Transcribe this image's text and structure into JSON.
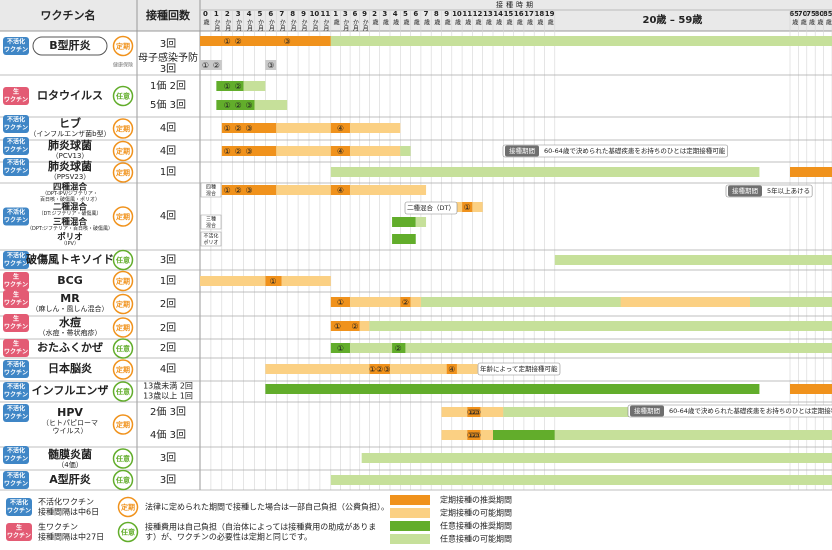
{
  "header": {
    "name": "ワクチン名",
    "doses": "接種回数",
    "period": "接種時期"
  },
  "columns": [
    [
      "0",
      "歳"
    ],
    [
      "1",
      "か月"
    ],
    [
      "2",
      "か月"
    ],
    [
      "3",
      "か月"
    ],
    [
      "4",
      "か月"
    ],
    [
      "5",
      "か月"
    ],
    [
      "6",
      "か月"
    ],
    [
      "7",
      "か月"
    ],
    [
      "8",
      "か月"
    ],
    [
      "9",
      "か月"
    ],
    [
      "10",
      "か月"
    ],
    [
      "11",
      "か月"
    ],
    [
      "1",
      "歳"
    ],
    [
      "3",
      "か月"
    ],
    [
      "6",
      "か月"
    ],
    [
      "9",
      "か月"
    ],
    [
      "2",
      "歳"
    ],
    [
      "3",
      "歳"
    ],
    [
      "4",
      "歳"
    ],
    [
      "5",
      "歳"
    ],
    [
      "6",
      "歳"
    ],
    [
      "7",
      "歳"
    ],
    [
      "8",
      "歳"
    ],
    [
      "9",
      "歳"
    ],
    [
      "10",
      "歳"
    ],
    [
      "11",
      "歳"
    ],
    [
      "12",
      "歳"
    ],
    [
      "13",
      "歳"
    ],
    [
      "14",
      "歳"
    ],
    [
      "15",
      "歳"
    ],
    [
      "16",
      "歳"
    ],
    [
      "17",
      "歳"
    ],
    [
      "18",
      "歳"
    ],
    [
      "19",
      "歳"
    ],
    [
      "20歳 – 59歳"
    ],
    [
      "65",
      "歳"
    ],
    [
      "70",
      "歳"
    ],
    [
      "75",
      "歳"
    ],
    [
      "80",
      "歳"
    ],
    [
      "85",
      "歳"
    ]
  ],
  "rows": [
    {
      "badge": [
        "不活化",
        "ワクチン"
      ],
      "category": "定期",
      "name": "B型肝炎",
      "sub": [],
      "sub_badge": "健康保険",
      "doses": [
        "3回",
        "母子感染予防",
        "3回"
      ],
      "marks": [
        "①",
        "②",
        "③",
        "①",
        "②",
        "③"
      ]
    },
    {
      "badge": [
        "生",
        "ワクチン"
      ],
      "category": "任意",
      "name": "ロタウイルス",
      "sub": [],
      "doses": [
        "1価 2回",
        "5価 3回"
      ],
      "marks": [
        "①",
        "②",
        "①",
        "②",
        "③"
      ]
    },
    {
      "badge": [
        "不活化",
        "ワクチン"
      ],
      "category": "定期",
      "name": "ヒブ",
      "sub": [
        "（インフルエンザ菌b型）"
      ],
      "doses": [
        "4回"
      ],
      "marks": [
        "①",
        "②",
        "③",
        "④"
      ]
    },
    {
      "badge": [
        "不活化",
        "ワクチン"
      ],
      "category": "定期",
      "name": "肺炎球菌",
      "sub": [
        "（PCV13）"
      ],
      "doses": [
        "4回"
      ],
      "marks": [
        "①",
        "②",
        "③",
        "④"
      ]
    },
    {
      "badge": [
        "不活化",
        "ワクチン"
      ],
      "category": "定期",
      "name": "肺炎球菌",
      "sub": [
        "（PPSV23）"
      ],
      "doses": [
        "1回"
      ],
      "marks": []
    },
    {
      "badge": [
        "不活化",
        "ワクチン"
      ],
      "category": "定期",
      "parts": [
        {
          "name": "四種混合",
          "sub": [
            "（DPT-IPV/ジフテリア・",
            "百日咳・破傷風・ポリオ）"
          ]
        },
        {
          "name": "二種混合",
          "sub": [
            "（DT:ジフテリア・破傷風）"
          ]
        },
        {
          "name": "三種混合",
          "sub": [
            "（DPT:ジフテリア・百日咳・破傷風）"
          ]
        },
        {
          "name": "ポリオ",
          "sub": [
            "（IPV）"
          ]
        }
      ],
      "doses": [
        "4回"
      ],
      "marks": [
        "①",
        "②",
        "③",
        "④",
        "①"
      ]
    },
    {
      "badge": [
        "不活化",
        "ワクチン"
      ],
      "category": "任意",
      "name": "破傷風トキソイド",
      "sub": [],
      "doses": [
        "3回"
      ],
      "marks": []
    },
    {
      "badge": [
        "生",
        "ワクチン"
      ],
      "category": "定期",
      "name": "BCG",
      "sub": [],
      "doses": [
        "1回"
      ],
      "marks": [
        "①"
      ]
    },
    {
      "badge": [
        "生",
        "ワクチン"
      ],
      "category": "定期",
      "name": "MR",
      "sub": [
        "（麻しん・風しん混合）"
      ],
      "doses": [
        "2回"
      ],
      "marks": [
        "①",
        "②"
      ]
    },
    {
      "badge": [
        "生",
        "ワクチン"
      ],
      "category": "定期",
      "name": "水痘",
      "sub": [
        "（水痘・帯状疱疹）"
      ],
      "doses": [
        "2回"
      ],
      "marks": [
        "①",
        "②"
      ]
    },
    {
      "badge": [
        "生",
        "ワクチン"
      ],
      "category": "任意",
      "name": "おたふくかぜ",
      "sub": [],
      "doses": [
        "2回"
      ],
      "marks": [
        "①",
        "②"
      ]
    },
    {
      "badge": [
        "不活化",
        "ワクチン"
      ],
      "category": "定期",
      "name": "日本脳炎",
      "sub": [],
      "doses": [
        "4回"
      ],
      "marks": [
        "①",
        "②",
        "③",
        "④"
      ]
    },
    {
      "badge": [
        "不活化",
        "ワクチン"
      ],
      "category": "任意",
      "name": "インフルエンザ",
      "sub": [],
      "doses": [
        "13歳未満 2回",
        "13歳以上 1回"
      ],
      "marks": []
    },
    {
      "badge": [
        "不活化",
        "ワクチン"
      ],
      "category": "定期",
      "name": "HPV",
      "sub": [
        "（ヒトパピローマ",
        "ウイルス）"
      ],
      "doses": [
        "2価 3回",
        "4価 3回"
      ],
      "marks": [
        "①",
        "②",
        "③",
        "①",
        "②",
        "③"
      ]
    },
    {
      "badge": [
        "不活化",
        "ワクチン"
      ],
      "category": "任意",
      "name": "髄膜炎菌",
      "sub": [
        "（4価）"
      ],
      "doses": [
        "3回"
      ],
      "marks": []
    },
    {
      "badge": [
        "不活化",
        "ワクチン"
      ],
      "category": "任意",
      "name": "A型肝炎",
      "sub": [],
      "doses": [
        "3回"
      ],
      "marks": []
    }
  ],
  "notes": [
    {
      "tag": "接種期間",
      "text": "60-64歳で決められた基礎疾患をお持ちのひとは定期接種可能"
    },
    {
      "tag": "接種期間",
      "text": "5年以上あける"
    },
    {
      "text": "二種混合（DT）"
    },
    {
      "text": "年齢によって定期接種可能"
    },
    {
      "tag": "接種期間",
      "text": "60-64歳で決められた基礎疾患をお持ちのひとは定期接種可能"
    }
  ],
  "grid_labels": [
    [
      "四種",
      "混合"
    ],
    [
      "三種",
      "混合"
    ],
    [
      "不活化",
      "ポリオ"
    ]
  ],
  "legend": {
    "badges": [
      {
        "badge": [
          "不活化",
          "ワクチン"
        ],
        "text": [
          "不活化ワクチン",
          "接種間隔は中6日"
        ]
      },
      {
        "badge": [
          "生",
          "ワクチン"
        ],
        "text": [
          "生ワクチン",
          "接種間隔は中27日"
        ]
      }
    ],
    "categories": [
      {
        "label": "定期",
        "text": [
          "法律に定められた期間で接種した場合は一部自己負担（公費負担）。"
        ]
      },
      {
        "label": "任意",
        "text": [
          "接種費用は自己負担（自治体によっては接種費用の助成がありま",
          "す）が、ワクチンの必要性は定期と同じです。"
        ]
      }
    ],
    "periods": [
      {
        "label": "定期接種の推奨期間",
        "color": "#f0921c"
      },
      {
        "label": "定期接種の可能期間",
        "color": "#fbd083"
      },
      {
        "label": "任意接種の推奨期間",
        "color": "#62ad2b"
      },
      {
        "label": "任意接種の可能期間",
        "color": "#c6e09a"
      }
    ]
  }
}
